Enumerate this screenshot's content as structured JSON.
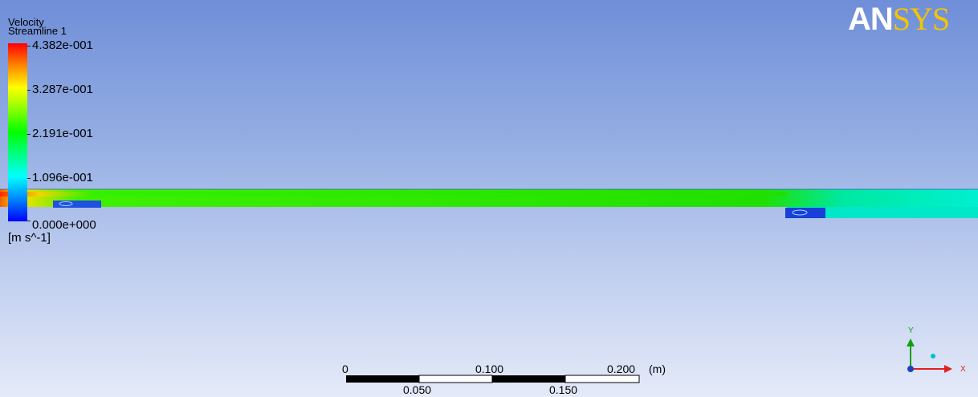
{
  "legend": {
    "variable": "Velocity",
    "object": "Streamline 1",
    "ticks": [
      "4.382e-001",
      "3.287e-001",
      "2.191e-001",
      "1.096e-001",
      "0.000e+000"
    ],
    "units": "[m s^-1]"
  },
  "logo": {
    "part1": "AN",
    "part2": "SYS"
  },
  "scale_bar": {
    "top_labels": [
      "0",
      "0.100",
      "0.200"
    ],
    "unit": "(m)",
    "bottom_labels": [
      "0.050",
      "0.150"
    ]
  },
  "axis_triad": {
    "y": "Y",
    "x": "X"
  },
  "colors": {
    "max": "#ff0000",
    "min": "#0000ff",
    "logo_accent": "#f5c400"
  }
}
